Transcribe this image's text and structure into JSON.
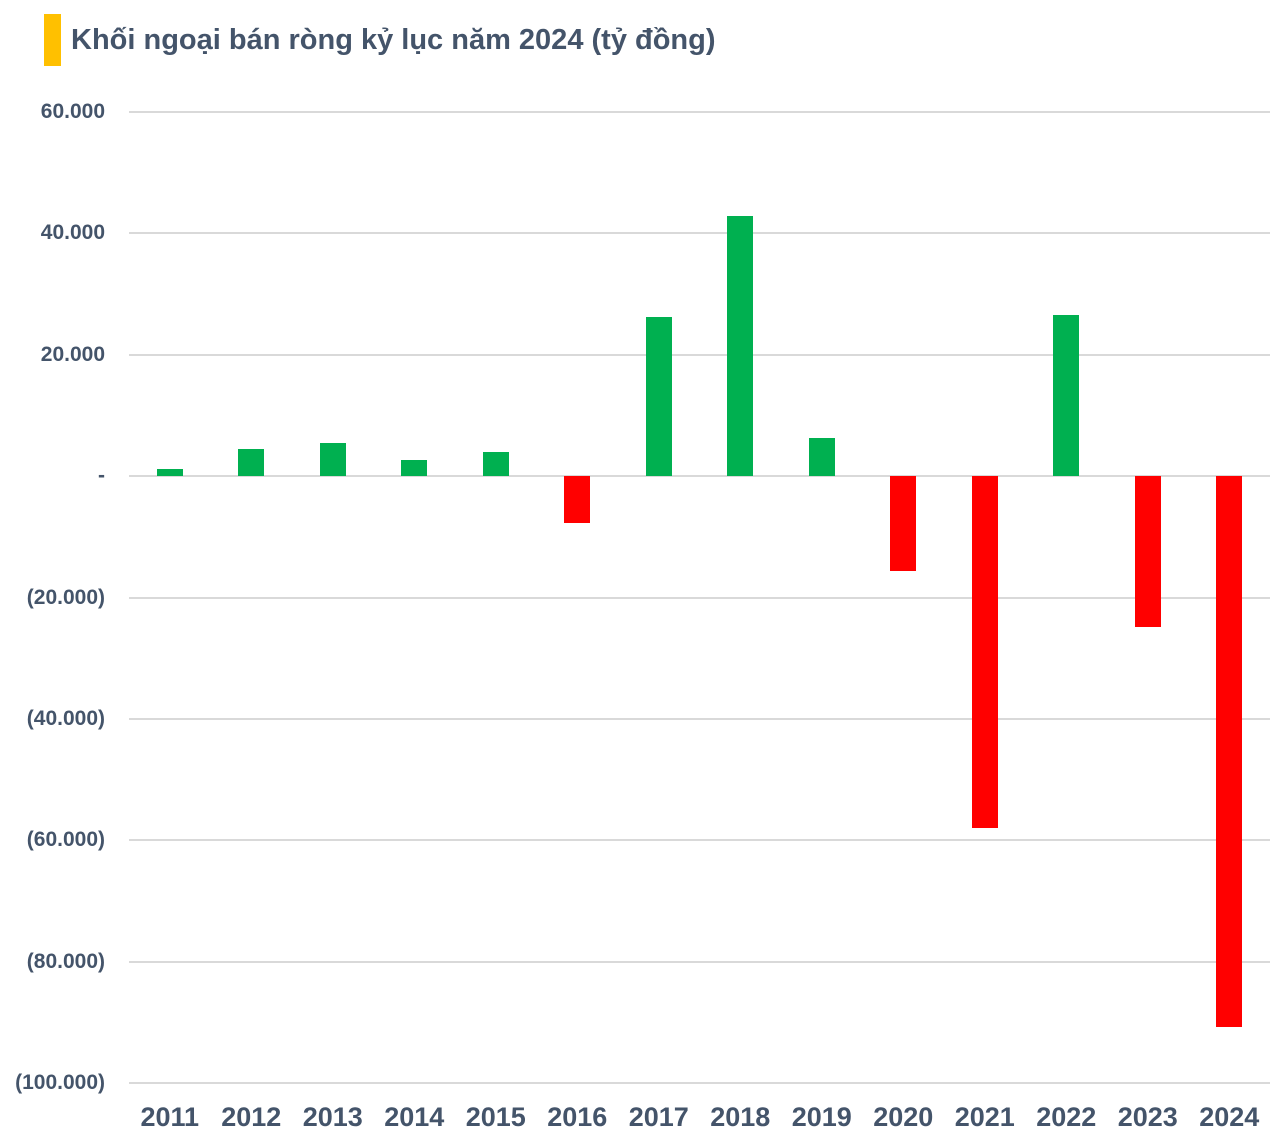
{
  "title": {
    "text": "Khối ngoại bán ròng kỷ lục năm 2024 (tỷ đồng)",
    "text_color": "#44546A",
    "accent_color": "#FFC000"
  },
  "chart_data": {
    "type": "bar",
    "title": "Khối ngoại bán ròng kỷ lục năm 2024 (tỷ đồng)",
    "xlabel": "",
    "ylabel": "",
    "categories": [
      "2011",
      "2012",
      "2013",
      "2014",
      "2015",
      "2016",
      "2017",
      "2018",
      "2019",
      "2020",
      "2021",
      "2022",
      "2023",
      "2024"
    ],
    "values": [
      1200,
      4400,
      5400,
      2700,
      3900,
      -7800,
      26200,
      42900,
      6300,
      -15700,
      -58000,
      26500,
      -24800,
      -90700
    ],
    "ylim": [
      -100000,
      60000
    ],
    "y_tick_step": 20000,
    "y_ticks": [
      {
        "value": 60000,
        "label": "60.000"
      },
      {
        "value": 40000,
        "label": "40.000"
      },
      {
        "value": 20000,
        "label": "20.000"
      },
      {
        "value": 0,
        "label": "-"
      },
      {
        "value": -20000,
        "label": "(20.000)"
      },
      {
        "value": -40000,
        "label": "(40.000)"
      },
      {
        "value": -60000,
        "label": "(60.000)"
      },
      {
        "value": -80000,
        "label": "(80.000)"
      },
      {
        "value": -100000,
        "label": "(100.000)"
      }
    ],
    "grid": true,
    "legend": false,
    "positive_color": "#00B050",
    "negative_color": "#FF0000",
    "gridline_color": "#D9D9D9",
    "axis_label_color": "#44546A"
  }
}
